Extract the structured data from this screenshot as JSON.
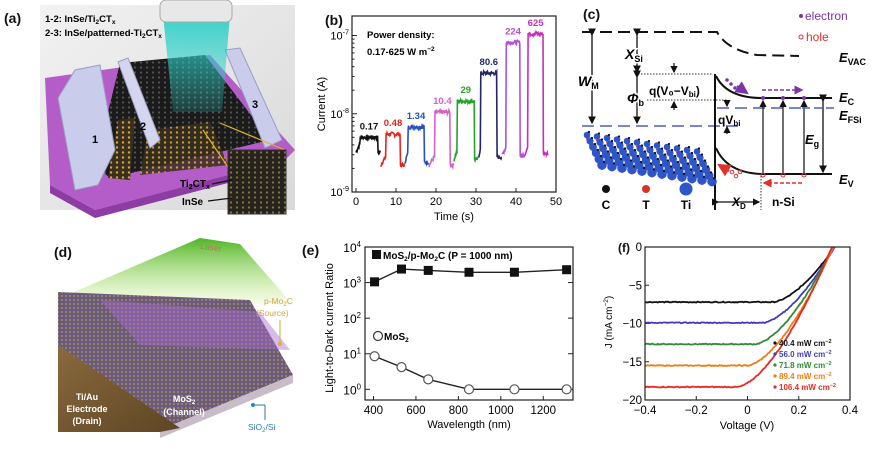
{
  "panels": {
    "a": {
      "label": "(a)",
      "legend_line1_prefix": "1-2: InSe/Ti",
      "legend_line1_sub": "2",
      "legend_line1_mid": "CT",
      "legend_line1_sub2": "x",
      "legend_line2_prefix": "2-3: InSe/patterned-Ti",
      "legend_line2_sub": "2",
      "legend_line2_mid": "CT",
      "legend_line2_sub2": "x",
      "electrode_labels": [
        "1",
        "2",
        "3"
      ],
      "inset_label_1_main": "Ti",
      "inset_label_1_sub": "2",
      "inset_label_1_mid": "CT",
      "inset_label_1_sub2": "x",
      "inset_label_2": "InSe",
      "colors": {
        "substrate": "#b45cc8",
        "beam": "#35c9c0",
        "electrode": "#c9ccea"
      }
    },
    "c": {
      "label": "(c)",
      "legend_electron": "electron",
      "legend_hole": "hole",
      "E_VAC": "E",
      "E_VAC_sub": "VAC",
      "E_C": "E",
      "E_C_sub": "C",
      "E_FSi": "E",
      "E_FSi_sub": "FSi",
      "E_g": "E",
      "E_g_sub": "g",
      "E_V": "E",
      "E_V_sub": "V",
      "W_M": "W",
      "W_M_sub": "M",
      "X_Si": "X",
      "X_Si_sub": "Si",
      "phi_b": "Φ",
      "phi_b_sub": "b",
      "qV0Vbi": "q(V₀−V",
      "qV0Vbi_sub": "bi",
      "qV0Vbi_end": ")",
      "qVbi": "qV",
      "qVbi_sub": "bi",
      "X_D": "X",
      "X_D_sub": "D",
      "n_Si": "n-Si",
      "atom_legend": [
        "C",
        "T",
        "Ti"
      ],
      "colors": {
        "electron": "#7b35a8",
        "hole": "#e0312b",
        "fermi": "#4a5fc0",
        "atom_C": "#111111",
        "atom_T": "#d9302a",
        "atom_Ti": "#2f56c9"
      }
    },
    "d": {
      "label": "(d)",
      "laser": "Laser",
      "source_line1": "p-Mo",
      "source_sub": "2",
      "source_line1_end": "C",
      "source_line2": "(Source)",
      "electrode_line1": "Ti/Au",
      "electrode_line2": "Electrode",
      "electrode_line3": "(Drain)",
      "channel_line1": "MoS",
      "channel_sub": "2",
      "channel_line2": "(Channel)",
      "substrate_main": "SiO",
      "substrate_sub": "2",
      "substrate_end": "/Si"
    }
  },
  "chart_data": [
    {
      "id": "b",
      "label": "(b)",
      "type": "line",
      "title": "",
      "annotation_line1": "Power density:",
      "annotation_line2": "0.17-625 W m",
      "annotation_sup": "−2",
      "xlabel": "Time (s)",
      "ylabel": "Current (A)",
      "xlim": [
        -1,
        50
      ],
      "ylim_log10": [
        -9,
        -6.75
      ],
      "yscale": "log",
      "xticks": [
        0,
        10,
        20,
        30,
        40,
        50
      ],
      "xtick_labels": [
        "0",
        "10",
        "20",
        "30",
        "40",
        "50"
      ],
      "yticks_log10": [
        -9,
        -8,
        -7
      ],
      "ytick_labels": [
        {
          "base": "10",
          "exp": "-9"
        },
        {
          "base": "10",
          "exp": "-8"
        },
        {
          "base": "10",
          "exp": "-7"
        }
      ],
      "series": [
        {
          "name": "0.17",
          "color": "#111111",
          "t_start": 0,
          "t_on": 1,
          "t_off": 5.5,
          "t_end": 6.2,
          "dark": 3.2e-09,
          "light": 5e-09
        },
        {
          "name": "0.48",
          "color": "#e8231c",
          "t_start": 6.2,
          "t_on": 7.5,
          "t_off": 11,
          "t_end": 12.2,
          "dark": 2.2e-09,
          "light": 5.5e-09
        },
        {
          "name": "1.34",
          "color": "#2650c0",
          "t_start": 12.2,
          "t_on": 13,
          "t_off": 17,
          "t_end": 18.3,
          "dark": 2.4e-09,
          "light": 6.8e-09
        },
        {
          "name": "10.4",
          "color": "#d760c8",
          "t_start": 18.3,
          "t_on": 19.7,
          "t_off": 23.5,
          "t_end": 24.5,
          "dark": 2.2e-09,
          "light": 1.05e-08
        },
        {
          "name": "29",
          "color": "#22a32a",
          "t_start": 24.5,
          "t_on": 25.3,
          "t_off": 29.6,
          "t_end": 30.6,
          "dark": 2.6e-09,
          "light": 1.45e-08
        },
        {
          "name": "80.6",
          "color": "#23236e",
          "t_start": 30.6,
          "t_on": 31.2,
          "t_off": 35.2,
          "t_end": 36.5,
          "dark": 2.8e-09,
          "light": 3.3e-08
        },
        {
          "name": "224",
          "color": "#b052d8",
          "t_start": 36.5,
          "t_on": 37.5,
          "t_off": 41,
          "t_end": 42.3,
          "dark": 2.9e-09,
          "light": 8.2e-08
        },
        {
          "name": "625",
          "color": "#c72fb8",
          "t_start": 42.3,
          "t_on": 43,
          "t_off": 46.8,
          "t_end": 48,
          "dark": 3.1e-09,
          "light": 1.05e-07
        }
      ]
    },
    {
      "id": "e",
      "label": "(e)",
      "type": "line",
      "xlabel": "Wavelength (nm)",
      "ylabel": "Light-to-Dark current Ratio",
      "xlim": [
        360,
        1340
      ],
      "ylim_log10": [
        -0.3,
        4
      ],
      "yscale": "log",
      "xticks": [
        400,
        600,
        800,
        1000,
        1200
      ],
      "xtick_labels": [
        "400",
        "600",
        "800",
        "1000",
        "1200"
      ],
      "yticks_log10": [
        0,
        1,
        2,
        3,
        4
      ],
      "ytick_labels": [
        {
          "base": "10",
          "exp": "0"
        },
        {
          "base": "10",
          "exp": "1"
        },
        {
          "base": "10",
          "exp": "2"
        },
        {
          "base": "10",
          "exp": "3"
        },
        {
          "base": "10",
          "exp": "4"
        }
      ],
      "series": [
        {
          "name": "MoS2/p-Mo2C (P = 1000 nm)",
          "legend_main": "MoS",
          "legend_sub": "2",
          "legend_mid": "/p-Mo",
          "legend_sub2": "2",
          "legend_end": "C (P = 1000 nm)",
          "marker": "filled-square",
          "color": "#111111",
          "x": [
            405,
            532,
            658,
            850,
            1064,
            1310
          ],
          "y": [
            1050,
            2400,
            2200,
            1950,
            1950,
            2300
          ]
        },
        {
          "name": "MoS2",
          "legend_main": "MoS",
          "legend_sub": "2",
          "marker": "open-circle",
          "color": "#111111",
          "x": [
            405,
            532,
            658,
            850,
            1064,
            1310
          ],
          "y": [
            8.5,
            4.2,
            1.9,
            1.0,
            1.0,
            1.0
          ]
        }
      ]
    },
    {
      "id": "f",
      "label": "(f)",
      "type": "line",
      "xlabel": "Voltage (V)",
      "ylabel_main": "J (mA cm",
      "ylabel_sup": "−2",
      "ylabel_end": ")",
      "xlim": [
        -0.4,
        0.4
      ],
      "ylim": [
        -20,
        0
      ],
      "xticks": [
        -0.4,
        -0.2,
        0,
        0.2,
        0.4
      ],
      "xtick_labels": [
        "−0.4",
        "−0.2",
        "0",
        "0.2",
        "0.4"
      ],
      "yticks": [
        0,
        -5,
        -10,
        -15,
        -20
      ],
      "ytick_labels": [
        "0",
        "−5",
        "−10",
        "−15",
        "−20"
      ],
      "legend_unit": "mW cm",
      "legend_sup": "−2",
      "series": [
        {
          "name": "40.4",
          "color": "#111111",
          "jsc": -7.2,
          "voc": 0.34,
          "knee": 0.1
        },
        {
          "name": "56.0",
          "color": "#3f3fb5",
          "jsc": -9.9,
          "voc": 0.34,
          "knee": 0.06
        },
        {
          "name": "71.8",
          "color": "#2e8b3a",
          "jsc": -12.7,
          "voc": 0.335,
          "knee": 0.03
        },
        {
          "name": "89.4",
          "color": "#f07d12",
          "jsc": -15.5,
          "voc": 0.335,
          "knee": 0.0
        },
        {
          "name": "106.4",
          "color": "#e52a22",
          "jsc": -18.3,
          "voc": 0.33,
          "knee": -0.04
        }
      ]
    }
  ]
}
